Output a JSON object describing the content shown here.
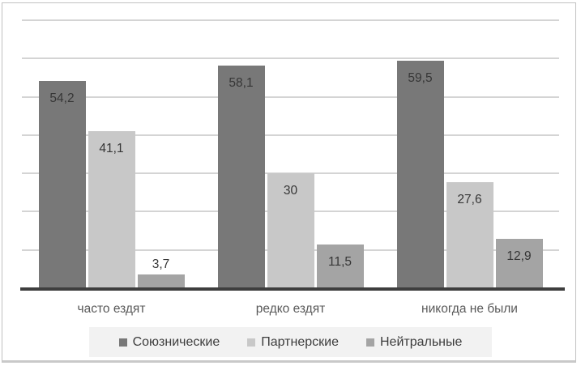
{
  "chart_data": {
    "type": "bar",
    "title": "",
    "xlabel": "",
    "ylabel": "",
    "categories": [
      "часто ездят",
      "редко ездят",
      "никогда не были"
    ],
    "series": [
      {
        "name": "Союзнические",
        "color": "#787878",
        "values": [
          54.2,
          58.1,
          59.5
        ],
        "labels": [
          "54,2",
          "58,1",
          "59,5"
        ]
      },
      {
        "name": "Партнерские",
        "color": "#c8c8c8",
        "values": [
          41.1,
          30.0,
          27.6
        ],
        "labels": [
          "41,1",
          "30",
          "27,6"
        ]
      },
      {
        "name": "Нейтральные",
        "color": "#a4a4a4",
        "values": [
          3.7,
          11.5,
          12.9
        ],
        "labels": [
          "3,7",
          "11,5",
          "12,9"
        ]
      }
    ],
    "ylim": [
      0,
      70
    ],
    "grid": true,
    "grid_step": 10,
    "y_tick_labels_visible": false,
    "legend_position": "bottom",
    "value_label_position": "inside-end",
    "colors": {
      "gridline": "#d4d4d4",
      "axis_line": "#3e3e3e",
      "value_label_text": "#363636",
      "category_text": "#595959",
      "legend_bg": "#f2f2f2",
      "legend_text": "#3d3d3d",
      "frame_border": "#c1c1c1",
      "background": "#ffffff"
    }
  }
}
